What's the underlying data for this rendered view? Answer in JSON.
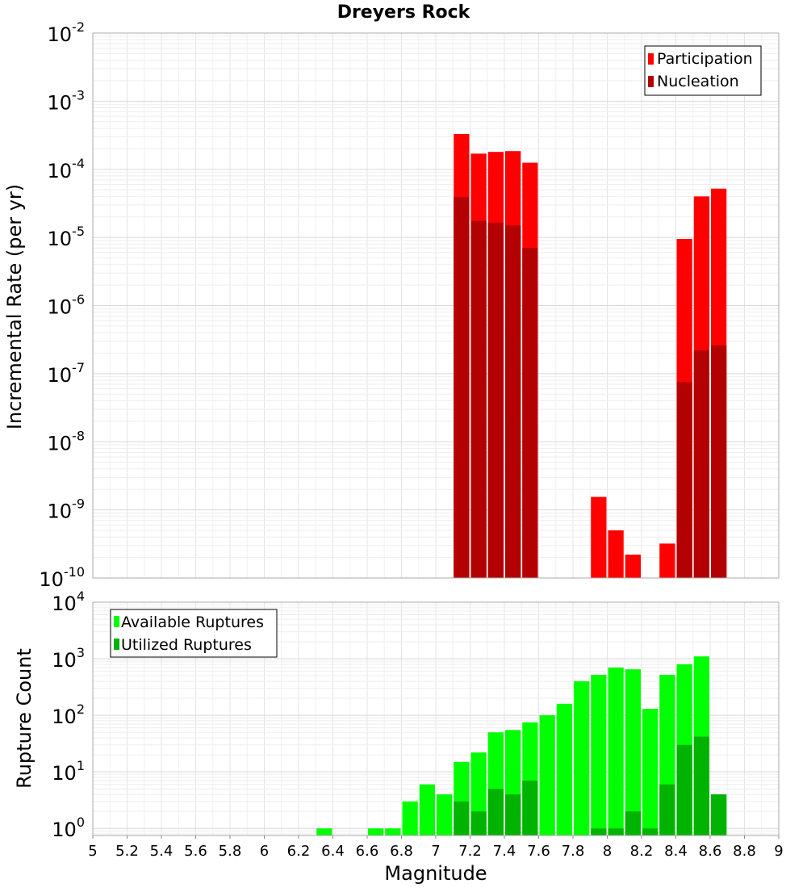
{
  "chart_data": [
    {
      "type": "bar",
      "title": "Dreyers Rock",
      "ylabel": "Incremental Rate (per yr)",
      "xlabel": "",
      "xlim": [
        5,
        9
      ],
      "yscale": "log",
      "ylim": [
        1e-10,
        0.01
      ],
      "y_ticks": [
        {
          "base": "10",
          "exp": "-10",
          "value": 1e-10
        },
        {
          "base": "10",
          "exp": "-9",
          "value": 1e-09
        },
        {
          "base": "10",
          "exp": "-8",
          "value": 1e-08
        },
        {
          "base": "10",
          "exp": "-7",
          "value": 1e-07
        },
        {
          "base": "10",
          "exp": "-6",
          "value": 1e-06
        },
        {
          "base": "10",
          "exp": "-5",
          "value": 1e-05
        },
        {
          "base": "10",
          "exp": "-4",
          "value": 0.0001
        },
        {
          "base": "10",
          "exp": "-3",
          "value": 0.001
        },
        {
          "base": "10",
          "exp": "-2",
          "value": 0.01
        }
      ],
      "legend_position": "top-right",
      "bar_width": 0.1,
      "series": [
        {
          "name": "Participation",
          "color": "#ff0000",
          "x": [
            7.15,
            7.25,
            7.35,
            7.45,
            7.55,
            7.95,
            8.05,
            8.15,
            8.35,
            8.45,
            8.55,
            8.65
          ],
          "values": [
            0.00033,
            0.00017,
            0.00018,
            0.000185,
            0.000125,
            1.55e-09,
            5e-10,
            2.2e-10,
            3.2e-10,
            9.5e-06,
            4e-05,
            5.2e-05
          ]
        },
        {
          "name": "Nucleation",
          "color": "#b30000",
          "x": [
            7.15,
            7.25,
            7.35,
            7.45,
            7.55,
            8.45,
            8.55,
            8.65
          ],
          "values": [
            3.9e-05,
            1.75e-05,
            1.65e-05,
            1.5e-05,
            7e-06,
            7.5e-08,
            2.2e-07,
            2.6e-07
          ]
        }
      ]
    },
    {
      "type": "bar",
      "title": "",
      "ylabel": "Rupture Count",
      "xlabel": "Magnitude",
      "xlim": [
        5,
        9
      ],
      "x_ticks": [
        "5",
        "5.2",
        "5.4",
        "5.6",
        "5.8",
        "6",
        "6.2",
        "6.4",
        "6.6",
        "6.8",
        "7",
        "7.2",
        "7.4",
        "7.6",
        "7.8",
        "8",
        "8.2",
        "8.4",
        "8.6",
        "8.8",
        "9"
      ],
      "yscale": "log",
      "ylim": [
        0.75,
        10000.0
      ],
      "y_ticks": [
        {
          "base": "10",
          "exp": "0",
          "value": 1
        },
        {
          "base": "10",
          "exp": "1",
          "value": 10
        },
        {
          "base": "10",
          "exp": "2",
          "value": 100
        },
        {
          "base": "10",
          "exp": "3",
          "value": 1000
        },
        {
          "base": "10",
          "exp": "4",
          "value": 10000
        }
      ],
      "legend_position": "top-left",
      "bar_width": 0.1,
      "series": [
        {
          "name": "Available Ruptures",
          "color": "#00ff00",
          "x": [
            6.35,
            6.65,
            6.75,
            6.85,
            6.95,
            7.05,
            7.15,
            7.25,
            7.35,
            7.45,
            7.55,
            7.65,
            7.75,
            7.85,
            7.95,
            8.05,
            8.15,
            8.25,
            8.35,
            8.45,
            8.55,
            8.65
          ],
          "values": [
            1,
            1,
            1,
            3,
            6,
            4,
            15,
            22,
            50,
            55,
            75,
            100,
            160,
            400,
            520,
            700,
            650,
            130,
            520,
            800,
            1100,
            4
          ]
        },
        {
          "name": "Utilized Ruptures",
          "color": "#00b300",
          "x": [
            7.15,
            7.25,
            7.35,
            7.45,
            7.55,
            7.95,
            8.05,
            8.15,
            8.25,
            8.35,
            8.45,
            8.55,
            8.65
          ],
          "values": [
            3,
            2,
            5,
            4,
            7,
            1,
            1,
            2,
            1,
            6,
            30,
            42,
            4
          ]
        }
      ]
    }
  ]
}
